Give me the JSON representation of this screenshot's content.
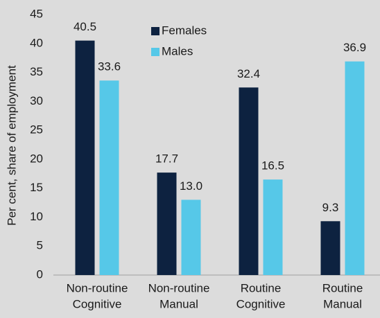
{
  "chart_data": {
    "type": "bar",
    "y_axis_label": "Per cent, share of employment",
    "categories": [
      [
        "Non-routine",
        "Cognitive"
      ],
      [
        "Non-routine",
        "Manual"
      ],
      [
        "Routine",
        "Cognitive"
      ],
      [
        "Routine",
        "Manual"
      ]
    ],
    "series": [
      {
        "name": "Females",
        "color": "#0d2240",
        "values": [
          40.5,
          17.7,
          32.4,
          9.3
        ],
        "value_labels": [
          "40.5",
          "17.7",
          "32.4",
          "9.3"
        ]
      },
      {
        "name": "Males",
        "color": "#56c8e8",
        "values": [
          33.6,
          13.0,
          16.5,
          36.9
        ],
        "value_labels": [
          "33.6",
          "13.0",
          "16.5",
          "36.9"
        ]
      }
    ],
    "ylim": [
      0,
      45
    ],
    "yticks": [
      0,
      5,
      10,
      15,
      20,
      25,
      30,
      35,
      40,
      45
    ],
    "grid": false,
    "legend": "top"
  }
}
